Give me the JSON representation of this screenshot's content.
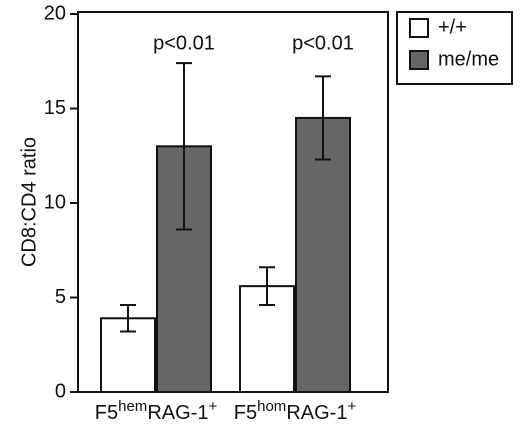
{
  "chart_data": {
    "type": "bar",
    "y_label": "CD8:CD4 ratio",
    "categories": [
      "F5hemRAG-1+",
      "F5homRAG-1+"
    ],
    "series": [
      {
        "name": "+/+",
        "color": "#ffffff",
        "values": [
          3.9,
          5.6
        ],
        "errors": [
          0.7,
          1.0
        ]
      },
      {
        "name": "me/me",
        "color": "#666666",
        "values": [
          13.0,
          14.5
        ],
        "errors": [
          4.4,
          2.2
        ]
      }
    ],
    "annotations": [
      "p<0.01",
      "p<0.01"
    ],
    "ylim": [
      0,
      20
    ],
    "yticks": [
      0,
      5,
      10,
      15,
      20
    ],
    "legend": "top-right",
    "grid": false
  }
}
